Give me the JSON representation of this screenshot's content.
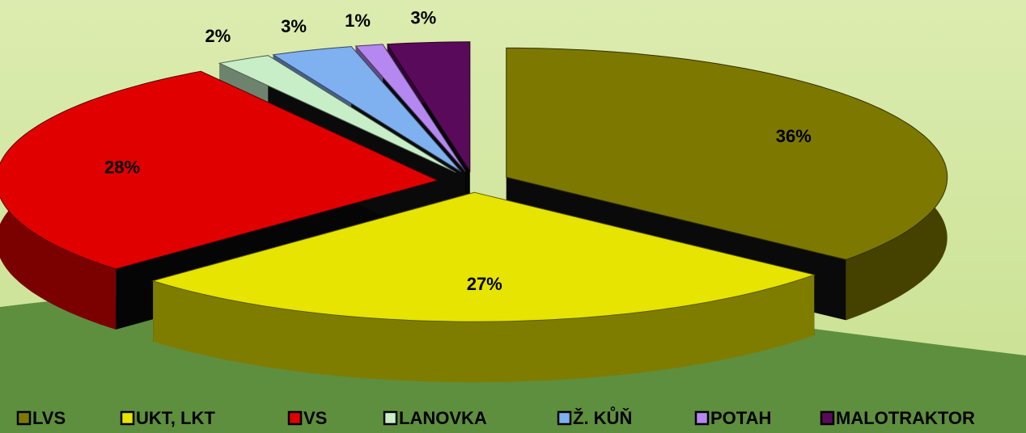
{
  "chart_data": {
    "type": "pie",
    "categories": [
      "LVS",
      "UKT, LKT",
      "VS",
      "LANOVKA",
      "Ž. KŮŇ",
      "POTAH",
      "MALOTRAKTOR"
    ],
    "values": [
      36,
      27,
      28,
      2,
      3,
      1,
      3
    ],
    "value_labels": [
      "36%",
      "27%",
      "28%",
      "2%",
      "3%",
      "1%",
      "3%"
    ],
    "colors": [
      "#7d7800",
      "#e6e400",
      "#e00000",
      "#c8eec8",
      "#7fb0f0",
      "#b488f0",
      "#5a0a5a"
    ],
    "legend": "bottom"
  }
}
